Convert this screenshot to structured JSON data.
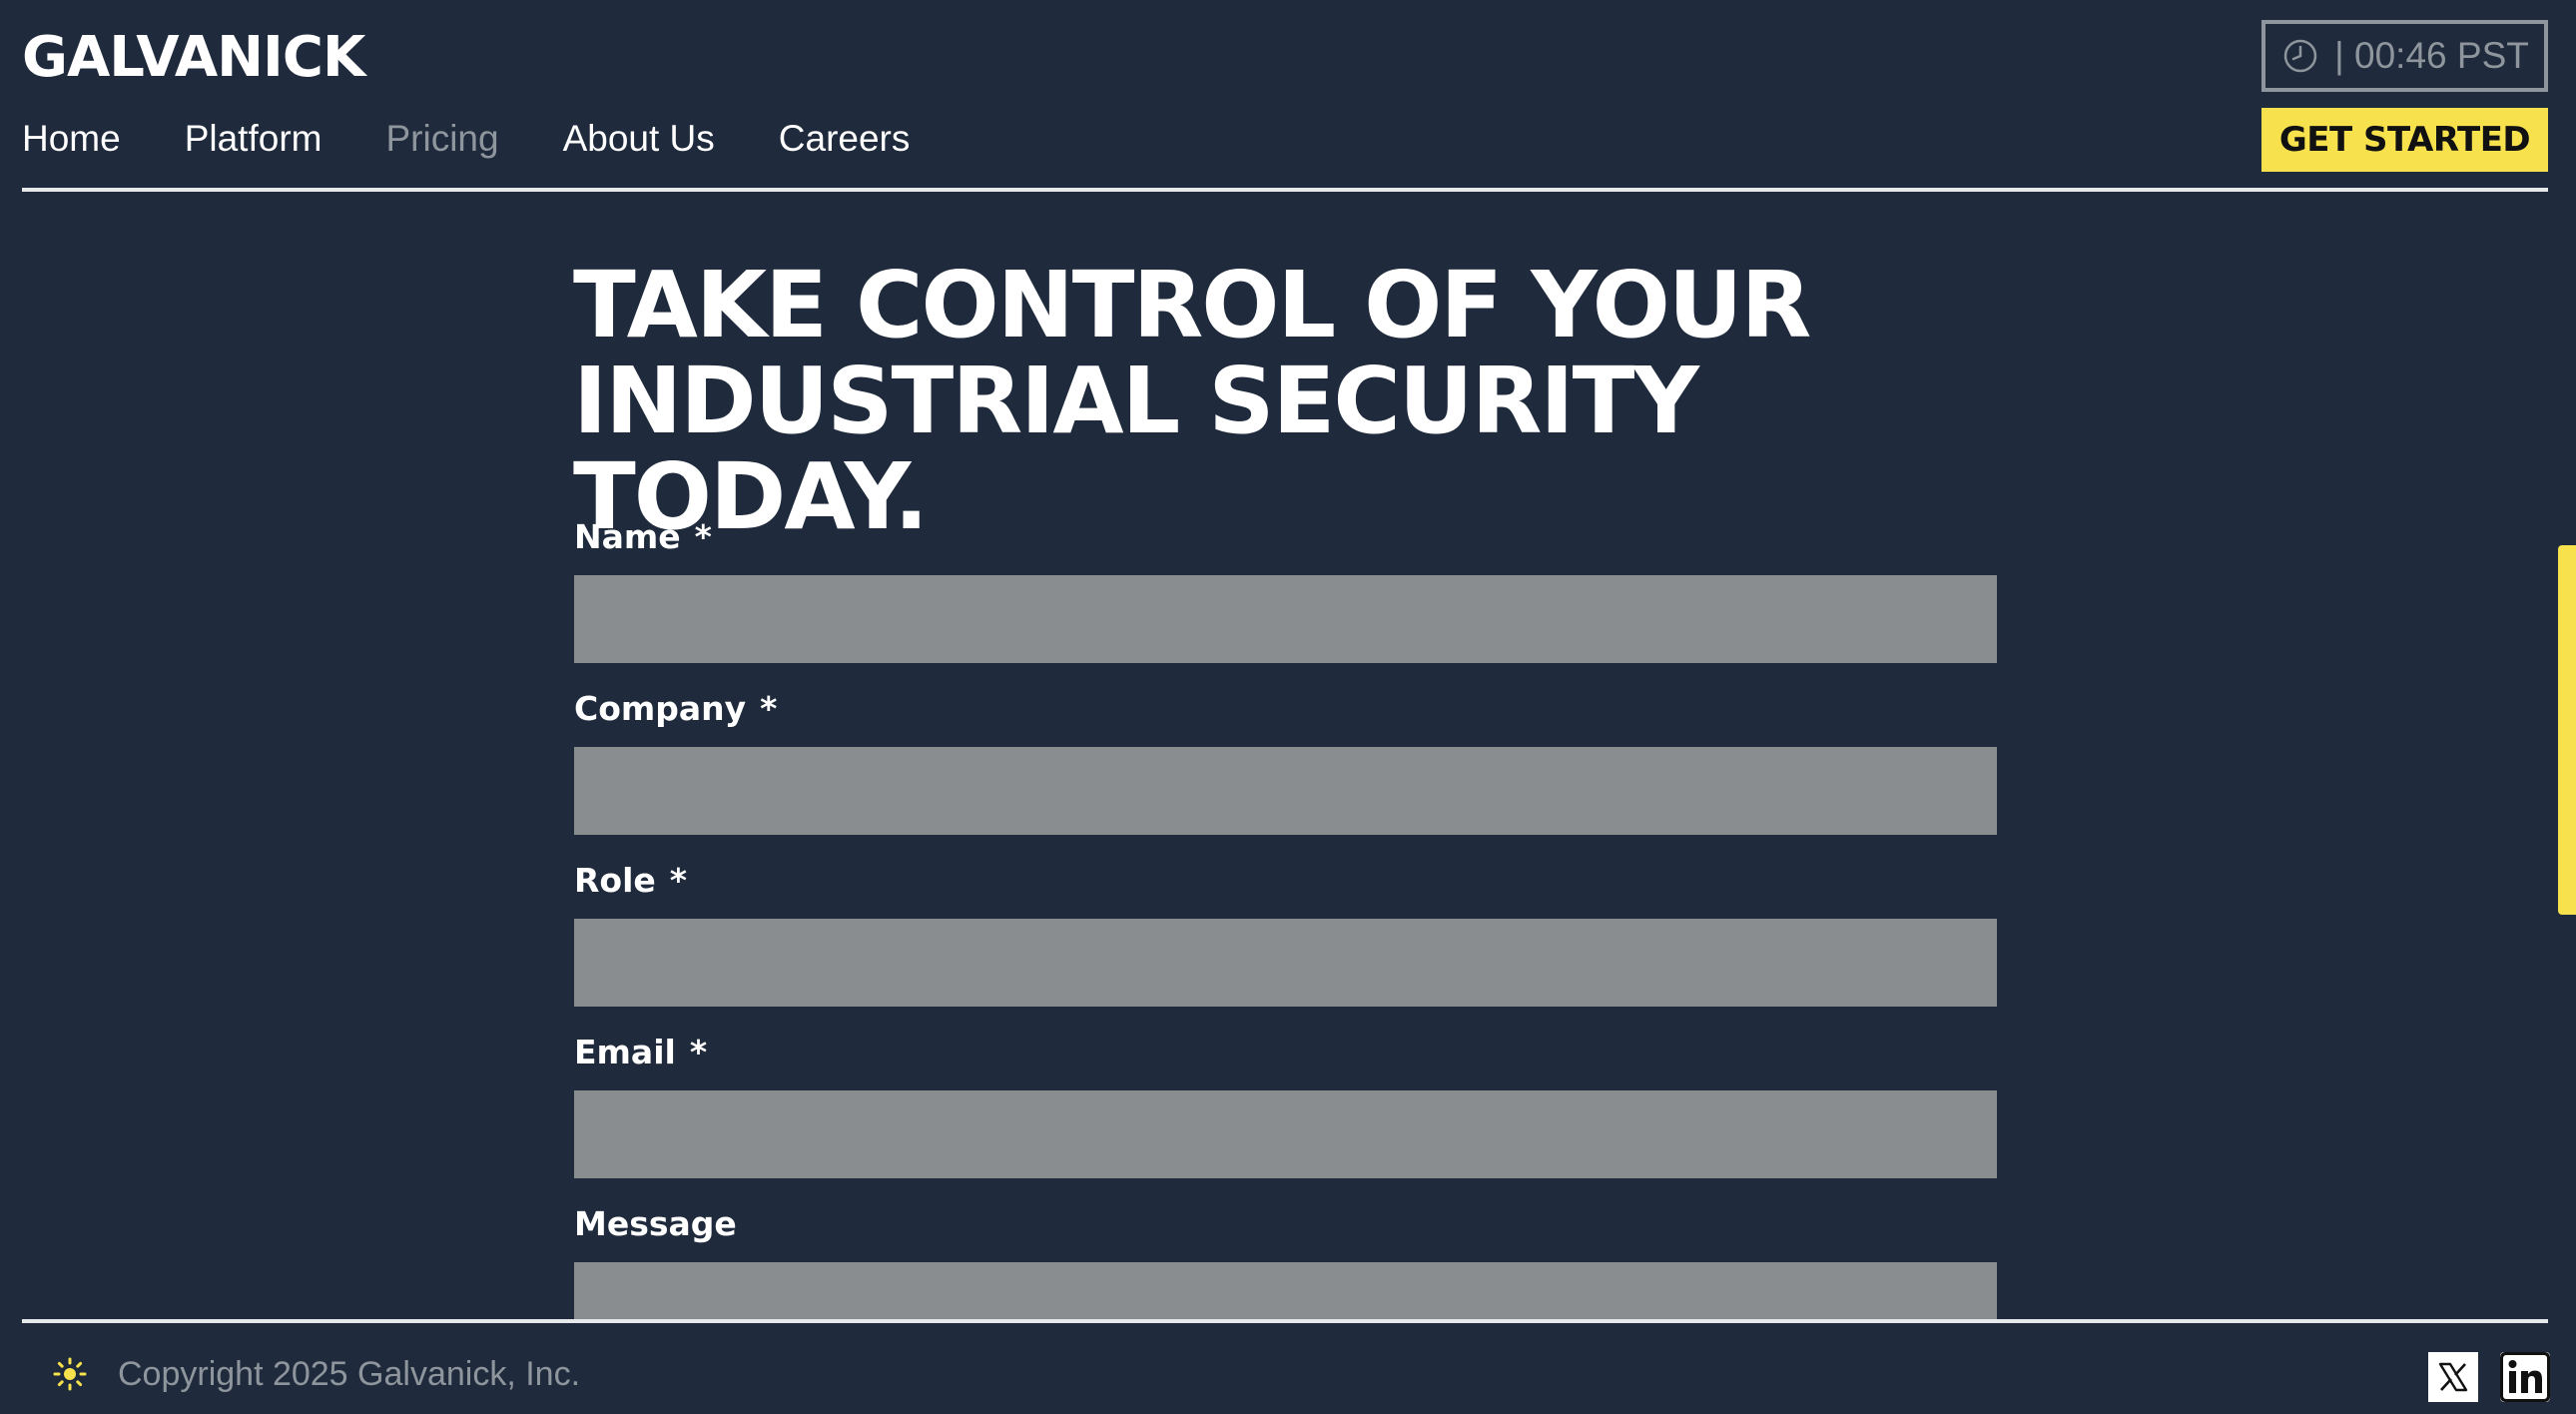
{
  "brand": {
    "logo_text": "GALVANICK"
  },
  "nav": {
    "items": [
      {
        "label": "Home",
        "active": false
      },
      {
        "label": "Platform",
        "active": false
      },
      {
        "label": "Pricing",
        "active": true
      },
      {
        "label": "About Us",
        "active": false
      },
      {
        "label": "Careers",
        "active": false
      }
    ]
  },
  "header": {
    "clock_text": "| 00:46 PST",
    "clock_icon": "clock-icon",
    "cta_label": "GET STARTED"
  },
  "main": {
    "headline_line1": "TAKE CONTROL OF YOUR",
    "headline_line2": "INDUSTRIAL SECURITY TODAY."
  },
  "form": {
    "fields": [
      {
        "label": "Name",
        "required_mark": "*",
        "value": ""
      },
      {
        "label": "Company",
        "required_mark": "*",
        "value": ""
      },
      {
        "label": "Role",
        "required_mark": "*",
        "value": ""
      },
      {
        "label": "Email",
        "required_mark": "*",
        "value": ""
      },
      {
        "label": "Message",
        "required_mark": "",
        "value": ""
      }
    ]
  },
  "footer": {
    "copyright": "Copyright 2025 Galvanick, Inc.",
    "theme_icon": "sun-icon",
    "social": [
      "x-icon",
      "linkedin-icon"
    ]
  },
  "colors": {
    "background": "#1f2b3c",
    "accent": "#f7e14c",
    "input_fill": "#898d90",
    "muted_text": "#8f959c"
  }
}
